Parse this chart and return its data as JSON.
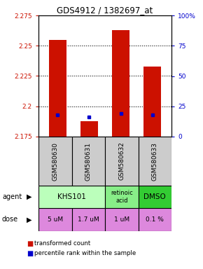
{
  "title": "GDS4912 / 1382697_at",
  "samples": [
    "GSM580630",
    "GSM580631",
    "GSM580632",
    "GSM580633"
  ],
  "bar_bottoms": [
    2.175,
    2.175,
    2.175,
    2.175
  ],
  "bar_tops": [
    2.255,
    2.188,
    2.263,
    2.233
  ],
  "percentile_values": [
    2.193,
    2.191,
    2.194,
    2.193
  ],
  "ylim_left": [
    2.175,
    2.275
  ],
  "ylim_right": [
    0,
    100
  ],
  "yticks_left": [
    2.175,
    2.2,
    2.225,
    2.25,
    2.275
  ],
  "yticks_right": [
    0,
    25,
    50,
    75,
    100
  ],
  "ytick_labels_left": [
    "2.175",
    "2.2",
    "2.225",
    "2.25",
    "2.275"
  ],
  "ytick_labels_right": [
    "0",
    "25",
    "50",
    "75",
    "100%"
  ],
  "bar_color": "#cc1100",
  "dot_color": "#0000cc",
  "dose_labels": [
    "5 uM",
    "1.7 uM",
    "1 uM",
    "0.1 %"
  ],
  "dose_color": "#dd88dd",
  "khs_color": "#bbffbb",
  "ra_color": "#88ee88",
  "dmso_color": "#33cc33",
  "legend_red_label": "transformed count",
  "legend_blue_label": "percentile rank within the sample",
  "bar_width": 0.55
}
